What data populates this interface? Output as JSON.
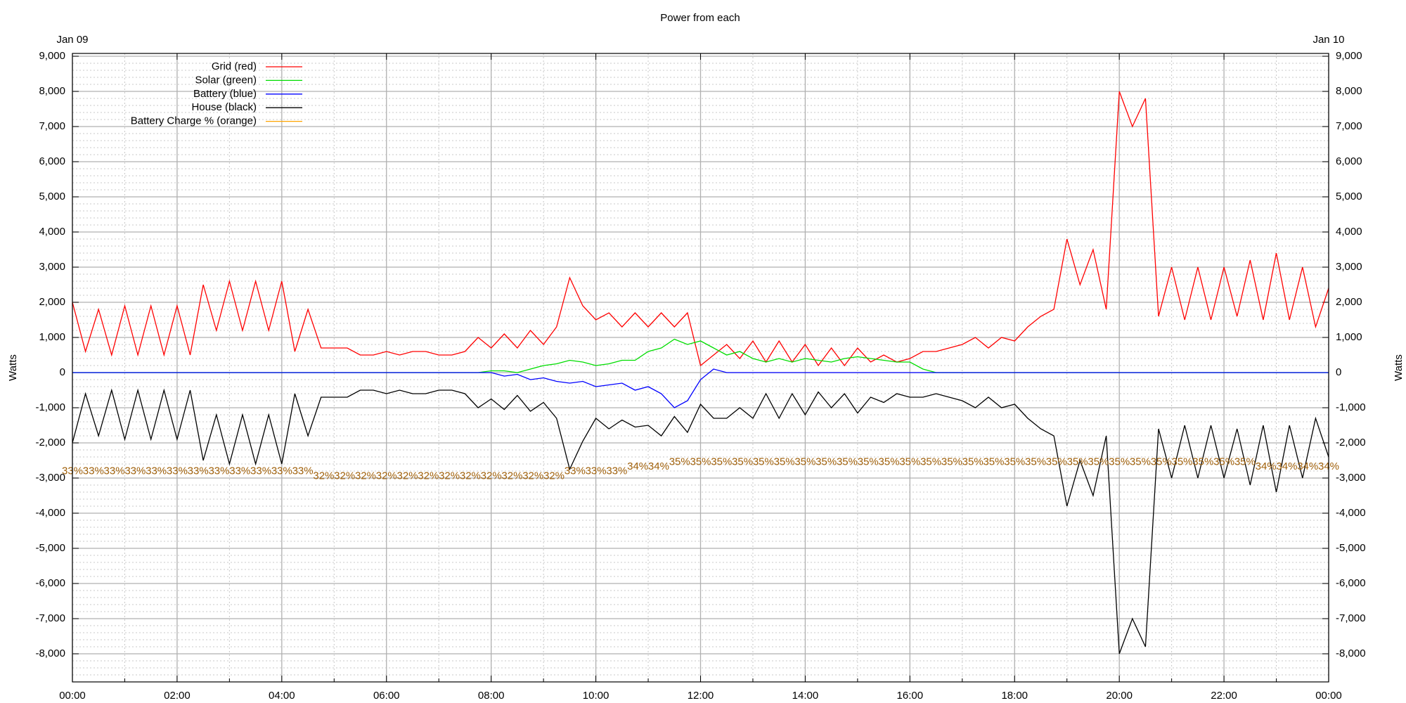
{
  "chart_data": {
    "type": "line",
    "title": "Power from each",
    "date_start": "Jan 09",
    "date_end": "Jan 10",
    "ylabel": "Watts",
    "y2label": "Watts",
    "xlim": [
      0,
      24
    ],
    "xticks": [
      {
        "value": 0,
        "label": "00:00"
      },
      {
        "value": 2,
        "label": "02:00"
      },
      {
        "value": 4,
        "label": "04:00"
      },
      {
        "value": 6,
        "label": "06:00"
      },
      {
        "value": 8,
        "label": "08:00"
      },
      {
        "value": 10,
        "label": "10:00"
      },
      {
        "value": 12,
        "label": "12:00"
      },
      {
        "value": 14,
        "label": "14:00"
      },
      {
        "value": 16,
        "label": "16:00"
      },
      {
        "value": 18,
        "label": "18:00"
      },
      {
        "value": 20,
        "label": "20:00"
      },
      {
        "value": 22,
        "label": "22:00"
      },
      {
        "value": 24,
        "label": "00:00"
      }
    ],
    "ylim": [
      -8800,
      9080
    ],
    "yticks": [
      {
        "value": -8000,
        "label": "-8,000"
      },
      {
        "value": -7000,
        "label": "-7,000"
      },
      {
        "value": -6000,
        "label": "-6,000"
      },
      {
        "value": -5000,
        "label": "-5,000"
      },
      {
        "value": -4000,
        "label": "-4,000"
      },
      {
        "value": -3000,
        "label": "-3,000"
      },
      {
        "value": -2000,
        "label": "-2,000"
      },
      {
        "value": -1000,
        "label": "-1,000"
      },
      0,
      {
        "value": 1000,
        "label": "1,000"
      },
      {
        "value": 2000,
        "label": "2,000"
      },
      {
        "value": 3000,
        "label": "3,000"
      },
      {
        "value": 4000,
        "label": "4,000"
      },
      {
        "value": 5000,
        "label": "5,000"
      },
      {
        "value": 6000,
        "label": "6,000"
      },
      {
        "value": 7000,
        "label": "7,000"
      },
      {
        "value": 8000,
        "label": "8,000"
      },
      {
        "value": 9000,
        "label": "9,000"
      }
    ],
    "y2lim": [
      -11.9,
      122.2
    ],
    "grid": true,
    "minor_grid": true,
    "xminor": 2,
    "yminor": 5,
    "legend": "upper left",
    "x": [
      0,
      0.25,
      0.5,
      0.75,
      1,
      1.25,
      1.5,
      1.75,
      2,
      2.25,
      2.5,
      2.75,
      3,
      3.25,
      3.5,
      3.75,
      4,
      4.25,
      4.5,
      4.75,
      5,
      5.25,
      5.5,
      5.75,
      6,
      6.25,
      6.5,
      6.75,
      7,
      7.25,
      7.5,
      7.75,
      8,
      8.25,
      8.5,
      8.75,
      9,
      9.25,
      9.5,
      9.75,
      10,
      10.25,
      10.5,
      10.75,
      11,
      11.25,
      11.5,
      11.75,
      12,
      12.25,
      12.5,
      12.75,
      13,
      13.25,
      13.5,
      13.75,
      14,
      14.25,
      14.5,
      14.75,
      15,
      15.25,
      15.5,
      15.75,
      16,
      16.25,
      16.5,
      16.75,
      17,
      17.25,
      17.5,
      17.75,
      18,
      18.25,
      18.5,
      18.75,
      19,
      19.25,
      19.5,
      19.75,
      20,
      20.25,
      20.5,
      20.75,
      21,
      21.25,
      21.5,
      21.75,
      22,
      22.25,
      22.5,
      22.75,
      23,
      23.25,
      23.5,
      23.75,
      24
    ],
    "series": [
      {
        "name": "Grid (red)",
        "color": "#ff0000",
        "values": [
          2000,
          600,
          1800,
          500,
          1900,
          500,
          1900,
          500,
          1900,
          500,
          2500,
          1200,
          2600,
          1200,
          2600,
          1200,
          2600,
          600,
          1800,
          700,
          700,
          700,
          500,
          500,
          600,
          500,
          600,
          600,
          500,
          500,
          600,
          1000,
          700,
          1100,
          700,
          1200,
          800,
          1300,
          2700,
          1900,
          1500,
          1700,
          1300,
          1700,
          1300,
          1700,
          1300,
          1700,
          200,
          500,
          800,
          400,
          900,
          300,
          900,
          300,
          800,
          200,
          700,
          200,
          700,
          300,
          500,
          300,
          400,
          600,
          600,
          700,
          800,
          1000,
          700,
          1000,
          900,
          1300,
          1600,
          1800,
          3800,
          2500,
          3500,
          1800,
          8000,
          7000,
          7800,
          1600,
          3000,
          1500,
          3000,
          1500,
          3000,
          1600,
          3200,
          1500,
          3400,
          1500,
          3000,
          1300,
          2400
        ]
      },
      {
        "name": "Solar (green)",
        "color": "#00dd00",
        "values": [
          0,
          0,
          0,
          0,
          0,
          0,
          0,
          0,
          0,
          0,
          0,
          0,
          0,
          0,
          0,
          0,
          0,
          0,
          0,
          0,
          0,
          0,
          0,
          0,
          0,
          0,
          0,
          0,
          0,
          0,
          0,
          0,
          50,
          50,
          0,
          100,
          200,
          250,
          350,
          300,
          200,
          250,
          350,
          350,
          600,
          700,
          950,
          800,
          900,
          700,
          500,
          600,
          400,
          300,
          400,
          300,
          400,
          350,
          300,
          400,
          450,
          400,
          350,
          300,
          300,
          100,
          0,
          0,
          0,
          0,
          0,
          0,
          0,
          0,
          0,
          0,
          0,
          0,
          0,
          0,
          0,
          0,
          0,
          0,
          0,
          0,
          0,
          0,
          0,
          0,
          0,
          0,
          0,
          0,
          0,
          0,
          0
        ]
      },
      {
        "name": "Battery (blue)",
        "color": "#0000ff",
        "values": [
          0,
          0,
          0,
          0,
          0,
          0,
          0,
          0,
          0,
          0,
          0,
          0,
          0,
          0,
          0,
          0,
          0,
          0,
          0,
          0,
          0,
          0,
          0,
          0,
          0,
          0,
          0,
          0,
          0,
          0,
          0,
          0,
          0,
          -100,
          -50,
          -200,
          -150,
          -250,
          -300,
          -250,
          -400,
          -350,
          -300,
          -500,
          -400,
          -600,
          -1000,
          -800,
          -200,
          100,
          0,
          0,
          0,
          0,
          0,
          0,
          0,
          0,
          0,
          0,
          0,
          0,
          0,
          0,
          0,
          0,
          0,
          0,
          0,
          0,
          0,
          0,
          0,
          0,
          0,
          0,
          0,
          0,
          0,
          0,
          0,
          0,
          0,
          0,
          0,
          0,
          0,
          0,
          0,
          0,
          0,
          0,
          0,
          0,
          0,
          0,
          0
        ]
      },
      {
        "name": "House (black)",
        "color": "#000000",
        "values": [
          -2000,
          -600,
          -1800,
          -500,
          -1900,
          -500,
          -1900,
          -500,
          -1900,
          -500,
          -2500,
          -1200,
          -2600,
          -1200,
          -2600,
          -1200,
          -2600,
          -600,
          -1800,
          -700,
          -700,
          -700,
          -500,
          -500,
          -600,
          -500,
          -600,
          -600,
          -500,
          -500,
          -600,
          -1000,
          -750,
          -1050,
          -650,
          -1100,
          -850,
          -1300,
          -2750,
          -1950,
          -1300,
          -1600,
          -1350,
          -1550,
          -1500,
          -1800,
          -1250,
          -1700,
          -900,
          -1300,
          -1300,
          -1000,
          -1300,
          -600,
          -1300,
          -600,
          -1200,
          -550,
          -1000,
          -600,
          -1150,
          -700,
          -850,
          -600,
          -700,
          -700,
          -600,
          -700,
          -800,
          -1000,
          -700,
          -1000,
          -900,
          -1300,
          -1600,
          -1800,
          -3800,
          -2500,
          -3500,
          -1800,
          -8000,
          -7000,
          -7800,
          -1600,
          -3000,
          -1500,
          -3000,
          -1500,
          -3000,
          -1600,
          -3200,
          -1500,
          -3400,
          -1500,
          -3000,
          -1300,
          -2400
        ]
      },
      {
        "name": "Battery Charge % (orange)",
        "color": "#ffa500",
        "label_color": "#a0600a",
        "style": "labels",
        "axis": "y2",
        "x": [
          0,
          0.4,
          0.8,
          1.2,
          1.6,
          2,
          2.4,
          2.8,
          3.2,
          3.6,
          4,
          4.4,
          4.8,
          5.2,
          5.6,
          6,
          6.4,
          6.8,
          7.2,
          7.6,
          8,
          8.4,
          8.8,
          9.2,
          9.6,
          10,
          10.4,
          10.8,
          11.2,
          11.6,
          12,
          12.4,
          12.8,
          13.2,
          13.6,
          14,
          14.4,
          14.8,
          15.2,
          15.6,
          16,
          16.4,
          16.8,
          17.2,
          17.6,
          18,
          18.4,
          18.8,
          19.2,
          19.6,
          20,
          20.4,
          20.8,
          21.2,
          21.6,
          22,
          22.4,
          22.8,
          23.2,
          23.6,
          24
        ],
        "values": [
          33,
          33,
          33,
          33,
          33,
          33,
          33,
          33,
          33,
          33,
          33,
          33,
          32,
          32,
          32,
          32,
          32,
          32,
          32,
          32,
          32,
          32,
          32,
          32,
          33,
          33,
          33,
          34,
          34,
          35,
          35,
          35,
          35,
          35,
          35,
          35,
          35,
          35,
          35,
          35,
          35,
          35,
          35,
          35,
          35,
          35,
          35,
          35,
          35,
          35,
          35,
          35,
          35,
          35,
          35,
          35,
          35,
          34,
          34,
          34,
          34
        ],
        "value_labels": [
          "33%",
          "33%",
          "33%",
          "33%",
          "33%",
          "33%",
          "33%",
          "33%",
          "33%",
          "33%",
          "33%",
          "33%",
          "32%",
          "32%",
          "32%",
          "32%",
          "32%",
          "32%",
          "32%",
          "32%",
          "32%",
          "32%",
          "32%",
          "32%",
          "33%",
          "33%",
          "33%",
          "34%",
          "34%",
          "35%",
          "35%",
          "35%",
          "35%",
          "35%",
          "35%",
          "35%",
          "35%",
          "35%",
          "35%",
          "35%",
          "35%",
          "35%",
          "35%",
          "35%",
          "35%",
          "35%",
          "35%",
          "35%",
          "35%",
          "35%",
          "35%",
          "35%",
          "35%",
          "35%",
          "35%",
          "35%",
          "35%",
          "34%",
          "34%",
          "34%",
          "34%"
        ]
      }
    ]
  }
}
